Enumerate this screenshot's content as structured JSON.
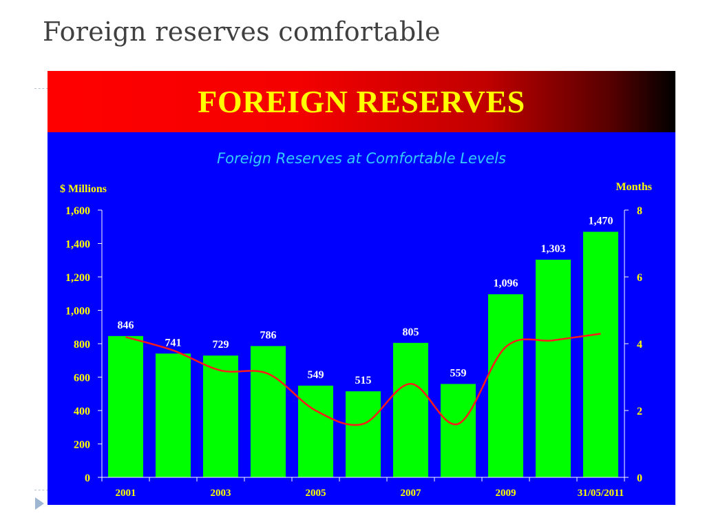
{
  "slide": {
    "title": "Foreign reserves comfortable"
  },
  "banner": {
    "text": "FOREIGN RESERVES"
  },
  "colors": {
    "panel": "#0000ff",
    "bars": "#00ff00",
    "line": "#ff1a1a",
    "axis_text": "#ffff00",
    "subtitle": "#33ccff",
    "data_labels": "#ffffff"
  },
  "chart_data": {
    "type": "bar",
    "title": "Foreign Reserves at Comfortable Levels",
    "ylabel": "$ Millions",
    "y2label": "Months",
    "ylim": [
      0,
      1600
    ],
    "y2lim": [
      0,
      8
    ],
    "yticks": [
      "0",
      "200",
      "400",
      "600",
      "800",
      "1,000",
      "1,200",
      "1,400",
      "1,600"
    ],
    "y2ticks": [
      "0",
      "2",
      "4",
      "6",
      "8"
    ],
    "categories": [
      "2001",
      "",
      "2003",
      "",
      "2005",
      "",
      "2007",
      "",
      "2009",
      "",
      "31/05/2011"
    ],
    "series": [
      {
        "type": "bar",
        "values": [
          846,
          741,
          729,
          786,
          549,
          515,
          805,
          559,
          1096,
          1303,
          1470
        ],
        "labels": [
          "846",
          "741",
          "729",
          "786",
          "549",
          "515",
          "805",
          "559",
          "1,096",
          "1,303",
          "1,470"
        ]
      },
      {
        "type": "line",
        "axis": "right",
        "values": [
          4.2,
          3.8,
          3.2,
          3.1,
          2.0,
          1.6,
          2.8,
          1.6,
          3.9,
          4.1,
          4.3
        ]
      }
    ],
    "grid": false,
    "legend": "none"
  }
}
